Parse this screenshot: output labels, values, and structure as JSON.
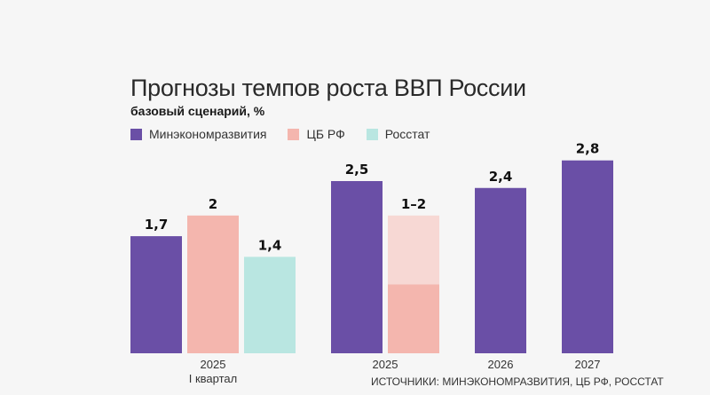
{
  "chart_data": {
    "type": "bar",
    "title": "Прогнозы темпов роста ВВП России",
    "subtitle": "базовый сценарий, %",
    "legend": [
      {
        "name": "Минэкономразвития",
        "color": "#6a4fa6"
      },
      {
        "name": "ЦБ РФ",
        "color": "#f4b6ae"
      },
      {
        "name": "Росстат",
        "color": "#b9e6e1"
      }
    ],
    "groups": [
      {
        "label": "2025",
        "sublabel": "I квартал",
        "bars": [
          {
            "series": "Минэкономразвития",
            "value": 1.7,
            "label": "1,7"
          },
          {
            "series": "ЦБ РФ",
            "value": 2,
            "label": "2"
          },
          {
            "series": "Росстат",
            "value": 1.4,
            "label": "1,4"
          }
        ]
      },
      {
        "label": "2025",
        "sublabel": "",
        "bars": [
          {
            "series": "Минэкономразвития",
            "value": 2.5,
            "label": "2,5"
          },
          {
            "series": "ЦБ РФ",
            "value": 2,
            "range": [
              1,
              2
            ],
            "label": "1–2"
          }
        ]
      },
      {
        "label": "2026",
        "sublabel": "",
        "bars": [
          {
            "series": "Минэкономразвития",
            "value": 2.4,
            "label": "2,4"
          }
        ]
      },
      {
        "label": "2027",
        "sublabel": "",
        "bars": [
          {
            "series": "Минэкономразвития",
            "value": 2.8,
            "label": "2,8"
          }
        ]
      }
    ],
    "ylim": [
      0,
      3.2
    ],
    "range_light_color": "#f7d8d4",
    "xlabel": "",
    "ylabel": ""
  },
  "source": "ИСТОЧНИКИ: МИНЭКОНОМРАЗВИТИЯ, ЦБ РФ, РОССТАТ"
}
